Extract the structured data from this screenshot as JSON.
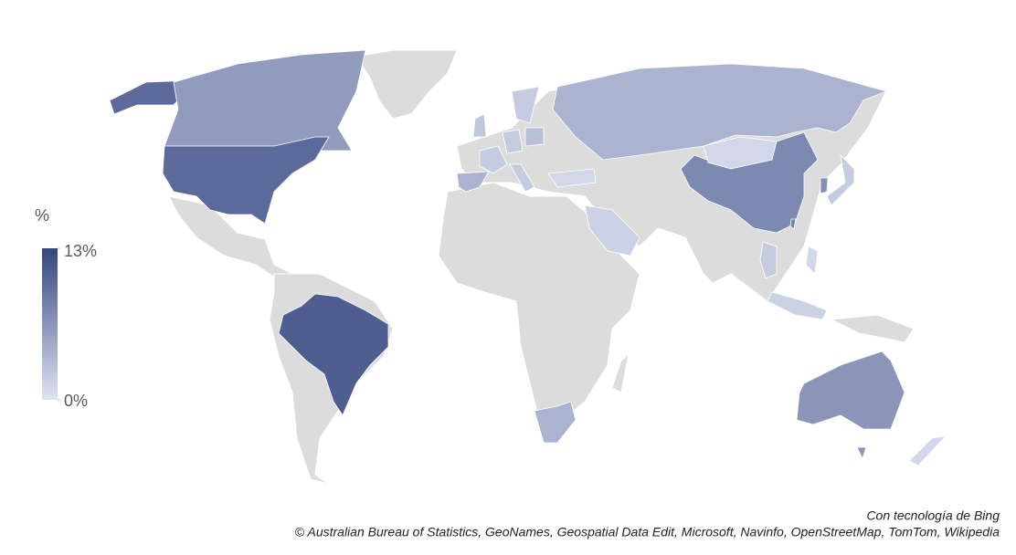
{
  "legend": {
    "title": "%",
    "lim": [
      0,
      13
    ],
    "ticks": [
      {
        "value": 13,
        "label": "13%"
      },
      {
        "value": 0,
        "label": "0%"
      }
    ],
    "colors": [
      "#dfe4f2",
      "#34467f"
    ]
  },
  "regions": {
    "values": [
      10,
      6,
      10,
      11,
      7.5,
      1,
      4,
      6.5,
      6.5,
      4,
      4,
      2,
      2.5,
      2,
      3,
      2,
      2,
      1,
      1.5,
      2,
      7,
      8,
      2,
      1.5,
      1,
      1
    ]
  },
  "credits": {
    "line1": "Con tecnología de Bing",
    "line2": "© Australian Bureau of Statistics, GeoNames, Geospatial Data Edit, Microsoft, Navinfo, OpenStreetMap, TomTom, Wikipedia"
  }
}
